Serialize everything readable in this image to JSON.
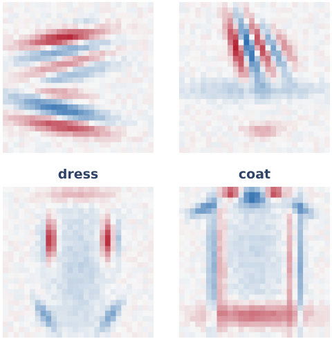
{
  "chart_data": [
    {
      "type": "heatmap",
      "title": "",
      "grid": false,
      "colors": {
        "positive": "#b2182b",
        "negative": "#2166ac",
        "zero": "#f7f7f7"
      },
      "features": [
        {
          "kind": "band",
          "cx": 0.4,
          "cy": 0.24,
          "ang": -10,
          "sx": 0.17,
          "sy": 0.035,
          "a": 0.95
        },
        {
          "kind": "band",
          "cx": 0.4,
          "cy": 0.32,
          "ang": -10,
          "sx": 0.2,
          "sy": 0.035,
          "a": -0.55
        },
        {
          "kind": "band",
          "cx": 0.43,
          "cy": 0.41,
          "ang": -15,
          "sx": 0.2,
          "sy": 0.035,
          "a": 0.45
        },
        {
          "kind": "band",
          "cx": 0.45,
          "cy": 0.48,
          "ang": -15,
          "sx": 0.2,
          "sy": 0.035,
          "a": -0.4
        },
        {
          "kind": "band",
          "cx": 0.35,
          "cy": 0.6,
          "ang": 10,
          "sx": 0.14,
          "sy": 0.035,
          "a": 0.35
        },
        {
          "kind": "band",
          "cx": 0.38,
          "cy": 0.71,
          "ang": 12,
          "sx": 0.2,
          "sy": 0.04,
          "a": -0.8
        },
        {
          "kind": "band",
          "cx": 0.4,
          "cy": 0.82,
          "ang": 8,
          "sx": 0.2,
          "sy": 0.035,
          "a": 0.75
        },
        {
          "kind": "band",
          "cx": 0.55,
          "cy": 0.15,
          "ang": 0,
          "sx": 0.06,
          "sy": 0.03,
          "a": -0.2
        }
      ]
    },
    {
      "type": "heatmap",
      "title": "",
      "grid": false,
      "colors": {
        "positive": "#b2182b",
        "negative": "#2166ac",
        "zero": "#f7f7f7"
      },
      "features": [
        {
          "kind": "band",
          "cx": 0.38,
          "cy": 0.3,
          "ang": 75,
          "sx": 0.14,
          "sy": 0.028,
          "a": 0.95
        },
        {
          "kind": "band",
          "cx": 0.46,
          "cy": 0.3,
          "ang": 72,
          "sx": 0.15,
          "sy": 0.028,
          "a": -0.95
        },
        {
          "kind": "band",
          "cx": 0.54,
          "cy": 0.28,
          "ang": 68,
          "sx": 0.14,
          "sy": 0.028,
          "a": 0.8
        },
        {
          "kind": "band",
          "cx": 0.62,
          "cy": 0.3,
          "ang": 62,
          "sx": 0.13,
          "sy": 0.028,
          "a": -0.6
        },
        {
          "kind": "band",
          "cx": 0.7,
          "cy": 0.3,
          "ang": 58,
          "sx": 0.1,
          "sy": 0.028,
          "a": 0.4
        },
        {
          "kind": "band",
          "cx": 0.5,
          "cy": 0.58,
          "ang": 0,
          "sx": 0.3,
          "sy": 0.05,
          "a": -0.25
        },
        {
          "kind": "band",
          "cx": 0.55,
          "cy": 0.85,
          "ang": 0,
          "sx": 0.08,
          "sy": 0.03,
          "a": 0.3
        }
      ]
    },
    {
      "type": "heatmap",
      "title": "dress",
      "grid": false,
      "colors": {
        "positive": "#b2182b",
        "negative": "#2166ac",
        "zero": "#f7f7f7"
      },
      "features": [
        {
          "kind": "band",
          "cx": 0.31,
          "cy": 0.35,
          "ang": 90,
          "sx": 0.08,
          "sy": 0.028,
          "a": 1.0
        },
        {
          "kind": "band",
          "cx": 0.7,
          "cy": 0.35,
          "ang": 90,
          "sx": 0.08,
          "sy": 0.028,
          "a": 0.95
        },
        {
          "kind": "band",
          "cx": 0.27,
          "cy": 0.35,
          "ang": 90,
          "sx": 0.09,
          "sy": 0.02,
          "a": -0.45
        },
        {
          "kind": "band",
          "cx": 0.75,
          "cy": 0.35,
          "ang": 90,
          "sx": 0.09,
          "sy": 0.02,
          "a": -0.45
        },
        {
          "kind": "band",
          "cx": 0.5,
          "cy": 0.05,
          "ang": 0,
          "sx": 0.14,
          "sy": 0.03,
          "a": 0.3
        },
        {
          "kind": "band",
          "cx": 0.5,
          "cy": 0.55,
          "ang": 90,
          "sx": 0.3,
          "sy": 0.12,
          "a": -0.18
        },
        {
          "kind": "band",
          "cx": 0.28,
          "cy": 0.85,
          "ang": 55,
          "sx": 0.07,
          "sy": 0.025,
          "a": -0.55
        },
        {
          "kind": "band",
          "cx": 0.72,
          "cy": 0.85,
          "ang": -55,
          "sx": 0.07,
          "sy": 0.025,
          "a": -0.55
        }
      ]
    },
    {
      "type": "heatmap",
      "title": "coat",
      "grid": false,
      "colors": {
        "positive": "#b2182b",
        "negative": "#2166ac",
        "zero": "#f7f7f7"
      },
      "features": [
        {
          "kind": "band",
          "cx": 0.35,
          "cy": 0.04,
          "ang": 0,
          "sx": 0.04,
          "sy": 0.025,
          "a": 0.95
        },
        {
          "kind": "band",
          "cx": 0.63,
          "cy": 0.04,
          "ang": 0,
          "sx": 0.04,
          "sy": 0.025,
          "a": 0.95
        },
        {
          "kind": "band",
          "cx": 0.49,
          "cy": 0.07,
          "ang": 0,
          "sx": 0.06,
          "sy": 0.04,
          "a": -0.85
        },
        {
          "kind": "band",
          "cx": 0.17,
          "cy": 0.14,
          "ang": -25,
          "sx": 0.07,
          "sy": 0.025,
          "a": -0.65
        },
        {
          "kind": "band",
          "cx": 0.8,
          "cy": 0.14,
          "ang": 25,
          "sx": 0.07,
          "sy": 0.025,
          "a": -0.55
        },
        {
          "kind": "band",
          "cx": 0.22,
          "cy": 0.52,
          "ang": 90,
          "sx": 0.3,
          "sy": 0.02,
          "a": -0.45
        },
        {
          "kind": "band",
          "cx": 0.28,
          "cy": 0.52,
          "ang": 90,
          "sx": 0.3,
          "sy": 0.02,
          "a": 0.35
        },
        {
          "kind": "band",
          "cx": 0.8,
          "cy": 0.52,
          "ang": 90,
          "sx": 0.3,
          "sy": 0.02,
          "a": -0.45
        },
        {
          "kind": "band",
          "cx": 0.74,
          "cy": 0.52,
          "ang": 90,
          "sx": 0.3,
          "sy": 0.02,
          "a": 0.35
        },
        {
          "kind": "band",
          "cx": 0.51,
          "cy": 0.85,
          "ang": 0,
          "sx": 0.22,
          "sy": 0.05,
          "a": 0.6
        },
        {
          "kind": "band",
          "cx": 0.5,
          "cy": 0.45,
          "ang": 90,
          "sx": 0.3,
          "sy": 0.14,
          "a": -0.15
        }
      ]
    }
  ]
}
